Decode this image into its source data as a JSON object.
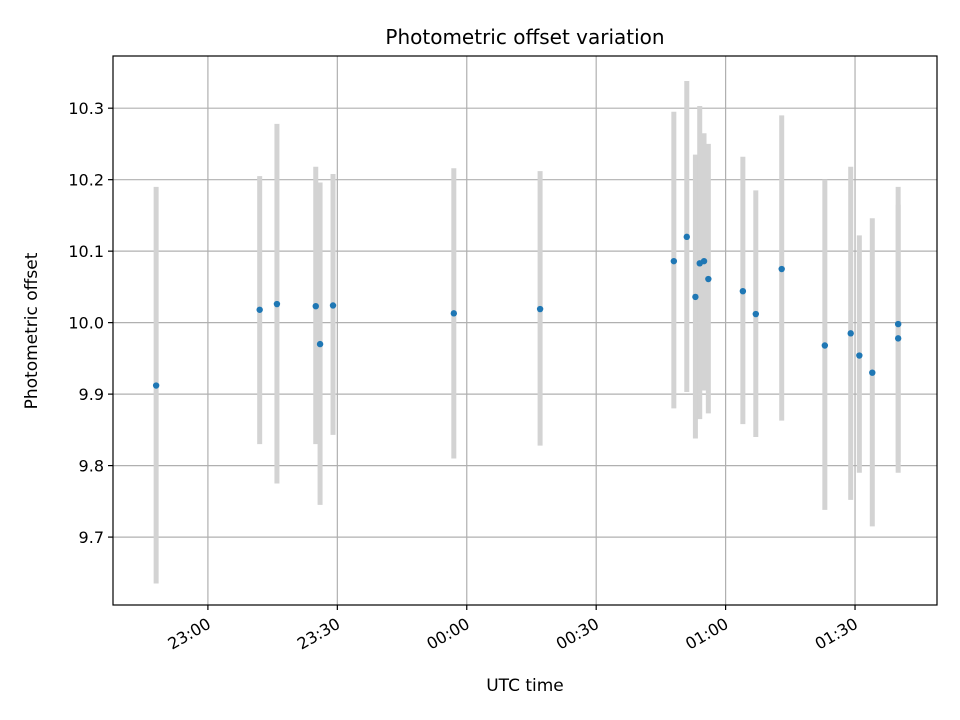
{
  "chart_data": {
    "type": "scatter",
    "title": "Photometric offset variation",
    "xlabel": "UTC time",
    "ylabel": "Photometric offset",
    "x_ticks": [
      "23:00",
      "23:30",
      "00:00",
      "00:30",
      "01:00",
      "01:30"
    ],
    "x_tick_times": [
      "22:00+60",
      "23:30",
      "24:00",
      "24:30",
      "25:00",
      "25:30"
    ],
    "y_ticks": [
      "9.7",
      "9.8",
      "9.9",
      "10.0",
      "10.1",
      "10.2",
      "10.3"
    ],
    "xlim": [
      "22:38",
      "01:49"
    ],
    "ylim": [
      9.605,
      10.373
    ],
    "grid": true,
    "colors": {
      "point": "#1f77b4",
      "errorbar": "#d3d3d3",
      "grid": "#b0b0b0",
      "axes": "#000000"
    },
    "points": [
      {
        "x": "22:48",
        "y": 9.912,
        "ymin": 9.635,
        "ymax": 10.19
      },
      {
        "x": "23:12",
        "y": 10.018,
        "ymin": 9.83,
        "ymax": 10.205
      },
      {
        "x": "23:16",
        "y": 10.026,
        "ymin": 9.775,
        "ymax": 10.278
      },
      {
        "x": "23:25",
        "y": 10.023,
        "ymin": 9.83,
        "ymax": 10.218
      },
      {
        "x": "23:26",
        "y": 9.97,
        "ymin": 9.745,
        "ymax": 10.196
      },
      {
        "x": "23:29",
        "y": 10.024,
        "ymin": 9.843,
        "ymax": 10.208
      },
      {
        "x": "23:57",
        "y": 10.013,
        "ymin": 9.81,
        "ymax": 10.216
      },
      {
        "x": "00:17",
        "y": 10.019,
        "ymin": 9.828,
        "ymax": 10.212
      },
      {
        "x": "00:48",
        "y": 10.086,
        "ymin": 9.88,
        "ymax": 10.295
      },
      {
        "x": "00:51",
        "y": 10.12,
        "ymin": 9.903,
        "ymax": 10.338
      },
      {
        "x": "00:53",
        "y": 10.036,
        "ymin": 9.838,
        "ymax": 10.235
      },
      {
        "x": "00:54",
        "y": 10.083,
        "ymin": 9.865,
        "ymax": 10.303
      },
      {
        "x": "00:55",
        "y": 10.086,
        "ymin": 9.905,
        "ymax": 10.265
      },
      {
        "x": "00:56",
        "y": 10.061,
        "ymin": 9.873,
        "ymax": 10.25
      },
      {
        "x": "01:04",
        "y": 10.044,
        "ymin": 9.858,
        "ymax": 10.232
      },
      {
        "x": "01:07",
        "y": 10.012,
        "ymin": 9.84,
        "ymax": 10.185
      },
      {
        "x": "01:13",
        "y": 10.075,
        "ymin": 9.863,
        "ymax": 10.29
      },
      {
        "x": "01:23",
        "y": 9.968,
        "ymin": 9.738,
        "ymax": 10.2
      },
      {
        "x": "01:29",
        "y": 9.985,
        "ymin": 9.752,
        "ymax": 10.218
      },
      {
        "x": "01:31",
        "y": 9.954,
        "ymin": 9.79,
        "ymax": 10.122
      },
      {
        "x": "01:34",
        "y": 9.93,
        "ymin": 9.715,
        "ymax": 10.146
      },
      {
        "x": "01:40",
        "y": 9.998,
        "ymin": 9.805,
        "ymax": 10.19
      },
      {
        "x": "01:40",
        "y": 9.978,
        "ymin": 9.79,
        "ymax": 10.165
      }
    ]
  }
}
